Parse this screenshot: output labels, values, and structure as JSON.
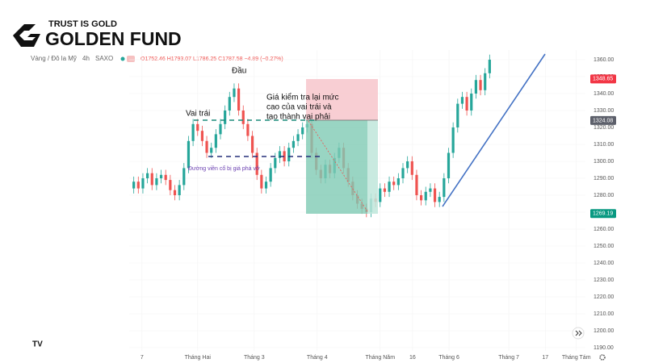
{
  "brand": {
    "tagline": "TRUST IS GOLD",
    "name": "GOLDEN FUND"
  },
  "chart_data": {
    "type": "candlestick",
    "symbol": "Vàng / Đô la Mỹ",
    "interval": "4h",
    "source": "SAXO",
    "ohlc_readout": "O1752.46 H1793.07 L1786.25 C1787.58 −4.89 (−0.27%)",
    "up_color": "#26a69a",
    "down_color": "#ef5350",
    "x": [
      1,
      2,
      3,
      4,
      5,
      6,
      7,
      8,
      9,
      10,
      11,
      12,
      13,
      14,
      15,
      16,
      17,
      18,
      19,
      20,
      21,
      22,
      23,
      24,
      25,
      26,
      27,
      28,
      29,
      30,
      31,
      32,
      33,
      34,
      35,
      36,
      37,
      38,
      39,
      40,
      41,
      42,
      43,
      44,
      45,
      46,
      47,
      48,
      49,
      50,
      51,
      52,
      53,
      54,
      55,
      56,
      57,
      58,
      59,
      60,
      61,
      62,
      63,
      64,
      65,
      66,
      67,
      68,
      69,
      70,
      71,
      72,
      73,
      74,
      75,
      76,
      77,
      78,
      79
    ],
    "open": [
      1284,
      1288,
      1284,
      1290,
      1293,
      1286,
      1290,
      1292,
      1289,
      1283,
      1280,
      1286,
      1296,
      1312,
      1322,
      1318,
      1312,
      1305,
      1308,
      1316,
      1322,
      1330,
      1338,
      1343,
      1330,
      1322,
      1315,
      1305,
      1292,
      1284,
      1288,
      1296,
      1302,
      1306,
      1300,
      1308,
      1312,
      1316,
      1320,
      1322,
      1305,
      1295,
      1290,
      1298,
      1293,
      1302,
      1308,
      1296,
      1288,
      1280,
      1275,
      1272,
      1270,
      1278,
      1276,
      1284,
      1282,
      1288,
      1286,
      1290,
      1296,
      1300,
      1292,
      1280,
      1277,
      1282,
      1284,
      1276,
      1279,
      1290,
      1305,
      1320,
      1334,
      1338,
      1330,
      1340,
      1348,
      1342,
      1352
    ],
    "high": [
      1291,
      1291,
      1293,
      1296,
      1296,
      1293,
      1295,
      1295,
      1292,
      1286,
      1289,
      1299,
      1315,
      1325,
      1325,
      1321,
      1315,
      1311,
      1319,
      1325,
      1333,
      1341,
      1346,
      1346,
      1333,
      1325,
      1318,
      1308,
      1295,
      1291,
      1299,
      1305,
      1309,
      1309,
      1311,
      1315,
      1319,
      1323,
      1325,
      1325,
      1308,
      1298,
      1301,
      1301,
      1305,
      1311,
      1311,
      1299,
      1291,
      1283,
      1278,
      1275,
      1281,
      1281,
      1287,
      1287,
      1291,
      1291,
      1293,
      1299,
      1303,
      1303,
      1295,
      1283,
      1285,
      1287,
      1287,
      1282,
      1293,
      1308,
      1323,
      1337,
      1341,
      1341,
      1343,
      1351,
      1351,
      1355,
      1363
    ],
    "low": [
      1281,
      1281,
      1281,
      1287,
      1283,
      1283,
      1287,
      1286,
      1280,
      1277,
      1277,
      1283,
      1293,
      1309,
      1315,
      1309,
      1302,
      1302,
      1305,
      1313,
      1319,
      1327,
      1335,
      1327,
      1319,
      1312,
      1302,
      1289,
      1281,
      1281,
      1285,
      1293,
      1299,
      1297,
      1297,
      1305,
      1309,
      1313,
      1317,
      1302,
      1292,
      1287,
      1287,
      1290,
      1290,
      1299,
      1293,
      1285,
      1277,
      1272,
      1269,
      1267,
      1267,
      1273,
      1273,
      1279,
      1279,
      1283,
      1283,
      1287,
      1293,
      1289,
      1277,
      1274,
      1274,
      1279,
      1273,
      1273,
      1276,
      1287,
      1302,
      1317,
      1331,
      1327,
      1327,
      1337,
      1339,
      1339,
      1349
    ],
    "close": [
      1288,
      1284,
      1290,
      1293,
      1286,
      1290,
      1292,
      1289,
      1283,
      1280,
      1286,
      1296,
      1312,
      1322,
      1318,
      1312,
      1305,
      1308,
      1316,
      1322,
      1330,
      1338,
      1343,
      1330,
      1322,
      1315,
      1305,
      1292,
      1284,
      1288,
      1296,
      1302,
      1306,
      1300,
      1308,
      1312,
      1316,
      1320,
      1322,
      1305,
      1295,
      1290,
      1298,
      1293,
      1302,
      1308,
      1296,
      1288,
      1280,
      1275,
      1272,
      1270,
      1278,
      1276,
      1284,
      1282,
      1288,
      1286,
      1290,
      1296,
      1300,
      1292,
      1280,
      1277,
      1282,
      1284,
      1276,
      1279,
      1290,
      1305,
      1320,
      1334,
      1338,
      1330,
      1340,
      1348,
      1342,
      1352,
      1360
    ],
    "xlim": [
      0,
      100
    ],
    "xticks": [
      {
        "value": 2.8,
        "label": "7"
      },
      {
        "value": 15.0,
        "label": "Tháng Hai"
      },
      {
        "value": 27.4,
        "label": "Tháng 3"
      },
      {
        "value": 41.2,
        "label": "Tháng 4"
      },
      {
        "value": 55.0,
        "label": "Tháng Năm"
      },
      {
        "value": 62.1,
        "label": "16"
      },
      {
        "value": 70.1,
        "label": "Tháng 6"
      },
      {
        "value": 83.2,
        "label": "Tháng 7"
      },
      {
        "value": 91.2,
        "label": "17"
      },
      {
        "value": 98.0,
        "label": "Tháng Tám"
      }
    ],
    "ylim": [
      1190,
      1360
    ],
    "yticks": [
      {
        "value": 1190,
        "label": "1190.00"
      },
      {
        "value": 1200,
        "label": "1200.00"
      },
      {
        "value": 1210,
        "label": "1210.00"
      },
      {
        "value": 1220,
        "label": "1220.00"
      },
      {
        "value": 1230,
        "label": "1230.00"
      },
      {
        "value": 1240,
        "label": "1240.00"
      },
      {
        "value": 1250,
        "label": "1250.00"
      },
      {
        "value": 1260,
        "label": "1260.00"
      },
      {
        "value": 1270,
        "label": "1270.00"
      },
      {
        "value": 1280,
        "label": "1280.00"
      },
      {
        "value": 1290,
        "label": "1290.00"
      },
      {
        "value": 1300,
        "label": "1300.00"
      },
      {
        "value": 1310,
        "label": "1310.00"
      },
      {
        "value": 1320,
        "label": "1320.00"
      },
      {
        "value": 1330,
        "label": "1330.00"
      },
      {
        "value": 1340,
        "label": "1340.00"
      },
      {
        "value": 1350,
        "label": "1350.00"
      },
      {
        "value": 1360,
        "label": "1360.00"
      }
    ],
    "price_labels": [
      {
        "value": 1348.65,
        "color": "#f23645"
      },
      {
        "value": 1324.08,
        "color": "#5d606b"
      },
      {
        "value": 1269.19,
        "color": "#089981"
      }
    ],
    "annotations": {
      "head": "Đầu",
      "left_shoulder": "Vai trái",
      "retest": [
        "Giá kiểm tra lại mức",
        "cao của vai trái và",
        "tạo thành vai phải"
      ],
      "neckline": "Đường viền cổ bị giá phá vỡ"
    }
  }
}
